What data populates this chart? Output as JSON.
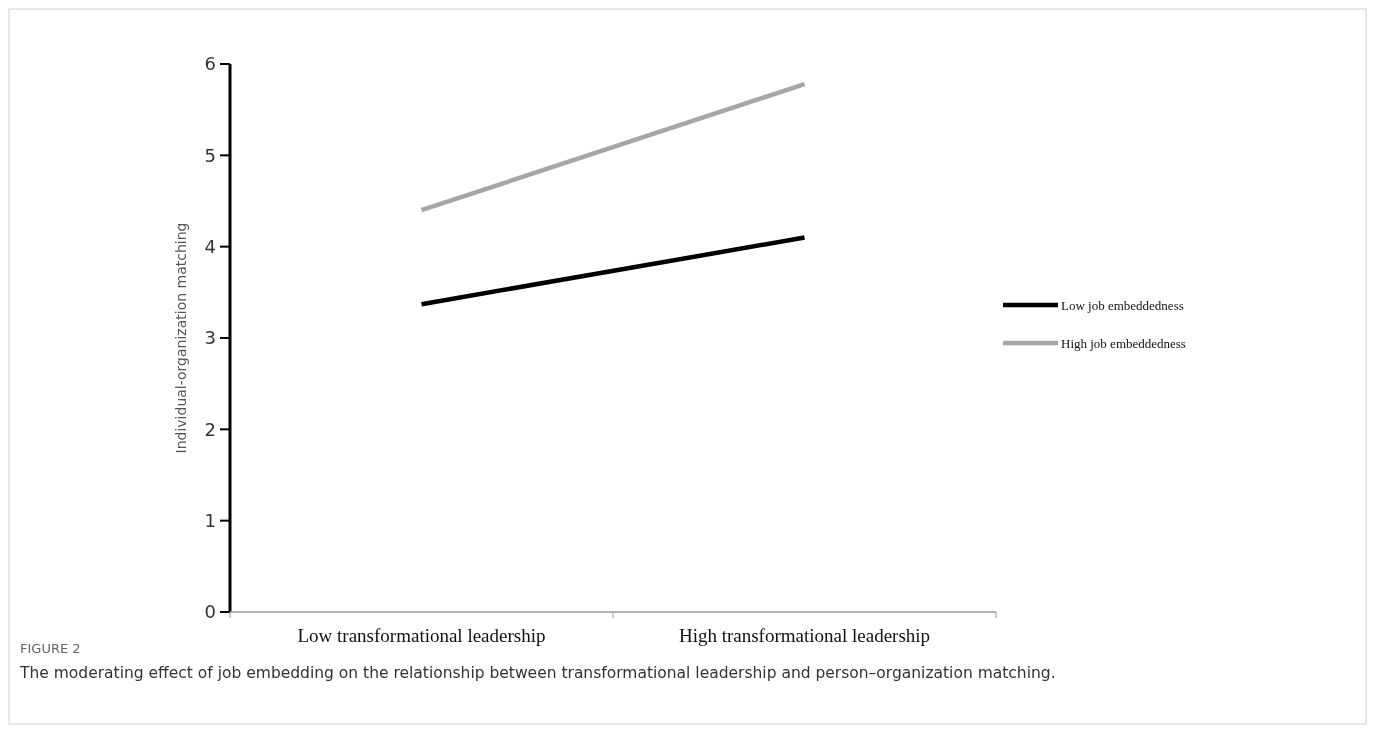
{
  "chart_data": {
    "type": "line",
    "title": "FIGURE 2",
    "subtitle": "The moderating effect of job embedding on the relationship between transformational leadership and person–organization matching.",
    "ylabel": "Individual-organization matching",
    "categories": [
      "Low transformational leadership",
      "High transformational leadership"
    ],
    "series": [
      {
        "name": "Low job embeddedness",
        "color": "#000000",
        "values": [
          3.37,
          4.1
        ]
      },
      {
        "name": "High job embeddedness",
        "color": "#a6a6a6",
        "values": [
          4.4,
          5.78
        ]
      }
    ],
    "ylim": [
      0,
      6
    ],
    "yticks": [
      0,
      1,
      2,
      3,
      4,
      5,
      6
    ],
    "legend": "right",
    "marker": "none",
    "line_style": "solid"
  }
}
